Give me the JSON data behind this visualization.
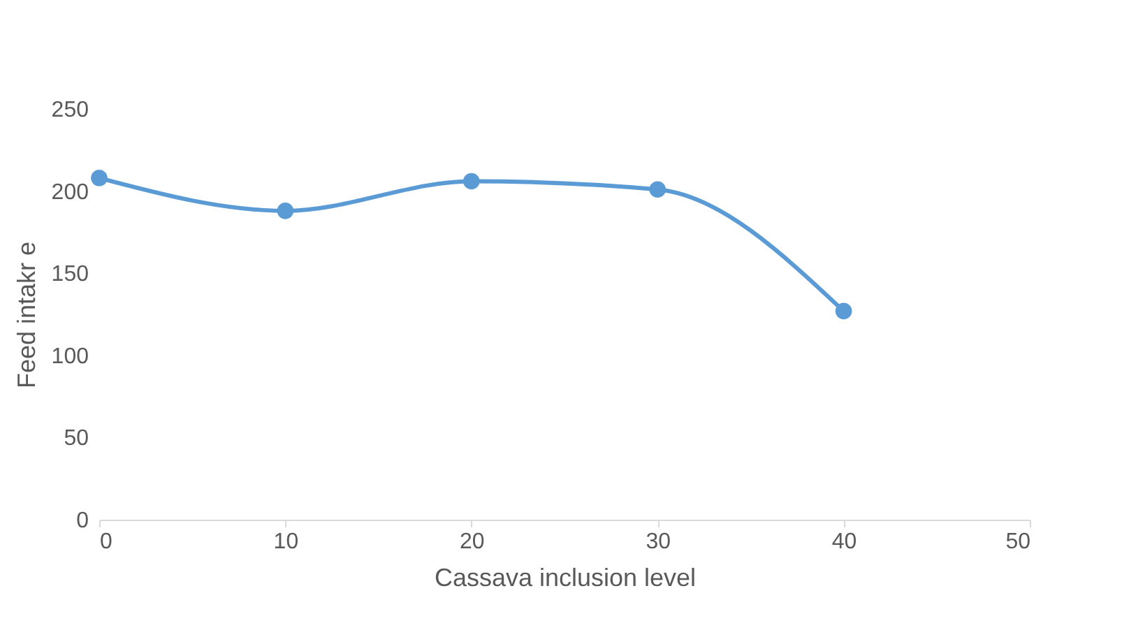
{
  "chart_data": {
    "type": "line",
    "xlabel": "Cassava inclusion level",
    "ylabel": "Feed intakr e",
    "x": [
      0,
      10,
      20,
      30,
      40
    ],
    "series": [
      {
        "color": "#5b9bd5",
        "values": [
          208,
          188,
          206,
          201,
          127
        ]
      }
    ],
    "xlim": [
      0,
      50
    ],
    "xticks": [
      0,
      10,
      20,
      30,
      40,
      50
    ],
    "ylim": [
      0,
      250
    ],
    "yticks": [
      0,
      50,
      100,
      150,
      200,
      250
    ],
    "grid": false,
    "marker": "circle",
    "line_style": "solid"
  }
}
